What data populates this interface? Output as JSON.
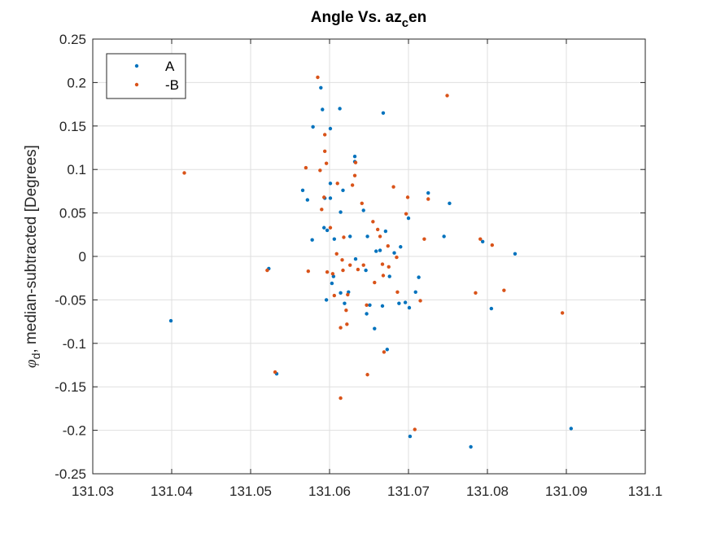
{
  "chart_data": {
    "type": "scatter",
    "title": {
      "main": "Angle Vs. az",
      "sub": "c",
      "tail": "en"
    },
    "ylabel": {
      "sym": "φ",
      "sub": "d",
      "rest": ", median-subtracted [Degrees]"
    },
    "xlabel": "",
    "xlim": [
      131.03,
      131.1
    ],
    "ylim": [
      -0.25,
      0.25
    ],
    "xticks": [
      131.03,
      131.04,
      131.05,
      131.06,
      131.07,
      131.08,
      131.09,
      131.1
    ],
    "xtick_labels": [
      "131.03",
      "131.04",
      "131.05",
      "131.06",
      "131.07",
      "131.08",
      "131.09",
      "131.1"
    ],
    "yticks": [
      -0.25,
      -0.2,
      -0.15,
      -0.1,
      -0.05,
      0,
      0.05,
      0.1,
      0.15,
      0.2,
      0.25
    ],
    "ytick_labels": [
      "-0.25",
      "-0.2",
      "-0.15",
      "-0.1",
      "-0.05",
      "0",
      "0.05",
      "0.1",
      "0.15",
      "0.2",
      "0.25"
    ],
    "grid": true,
    "legend_position": "top-left",
    "series": [
      {
        "name": "A",
        "color": "#0072BD",
        "points": [
          [
            131.0399,
            -0.074
          ],
          [
            131.0523,
            -0.014
          ],
          [
            131.0533,
            -0.135
          ],
          [
            131.0566,
            0.076
          ],
          [
            131.0572,
            0.065
          ],
          [
            131.0579,
            0.149
          ],
          [
            131.0578,
            0.019
          ],
          [
            131.0589,
            0.194
          ],
          [
            131.0591,
            0.169
          ],
          [
            131.0593,
            0.033
          ],
          [
            131.0594,
            0.067
          ],
          [
            131.0597,
            0.03
          ],
          [
            131.0596,
            -0.05
          ],
          [
            131.0601,
            0.147
          ],
          [
            131.0601,
            0.084
          ],
          [
            131.0601,
            0.067
          ],
          [
            131.0603,
            -0.031
          ],
          [
            131.0606,
            0.02
          ],
          [
            131.0605,
            -0.023
          ],
          [
            131.0613,
            0.17
          ],
          [
            131.0614,
            0.051
          ],
          [
            131.0614,
            -0.042
          ],
          [
            131.0617,
            0.076
          ],
          [
            131.0619,
            -0.054
          ],
          [
            131.0624,
            -0.041
          ],
          [
            131.0626,
            0.023
          ],
          [
            131.0632,
            0.115
          ],
          [
            131.0632,
            0.109
          ],
          [
            131.0633,
            -0.003
          ],
          [
            131.0643,
            0.053
          ],
          [
            131.0646,
            -0.016
          ],
          [
            131.0647,
            -0.066
          ],
          [
            131.0648,
            0.023
          ],
          [
            131.0651,
            -0.056
          ],
          [
            131.0657,
            -0.083
          ],
          [
            131.0659,
            0.006
          ],
          [
            131.0664,
            0.007
          ],
          [
            131.0667,
            -0.057
          ],
          [
            131.0668,
            0.165
          ],
          [
            131.0671,
            0.029
          ],
          [
            131.0673,
            -0.107
          ],
          [
            131.0676,
            -0.023
          ],
          [
            131.0682,
            0.004
          ],
          [
            131.0688,
            -0.054
          ],
          [
            131.069,
            0.011
          ],
          [
            131.0696,
            -0.053
          ],
          [
            131.07,
            0.044
          ],
          [
            131.0701,
            -0.059
          ],
          [
            131.0702,
            -0.207
          ],
          [
            131.0709,
            -0.041
          ],
          [
            131.0713,
            -0.024
          ],
          [
            131.0725,
            0.073
          ],
          [
            131.0745,
            0.023
          ],
          [
            131.0752,
            0.061
          ],
          [
            131.0779,
            -0.219
          ],
          [
            131.0794,
            0.017
          ],
          [
            131.0805,
            -0.06
          ],
          [
            131.0835,
            0.003
          ],
          [
            131.0906,
            -0.198
          ]
        ]
      },
      {
        "name": "-B",
        "color": "#D95319",
        "points": [
          [
            131.0416,
            0.096
          ],
          [
            131.0521,
            -0.016
          ],
          [
            131.0531,
            -0.133
          ],
          [
            131.057,
            0.102
          ],
          [
            131.0573,
            -0.017
          ],
          [
            131.0585,
            0.206
          ],
          [
            131.0588,
            0.099
          ],
          [
            131.059,
            0.054
          ],
          [
            131.0593,
            0.068
          ],
          [
            131.0594,
            0.14
          ],
          [
            131.0594,
            0.121
          ],
          [
            131.0596,
            0.107
          ],
          [
            131.0597,
            -0.018
          ],
          [
            131.0601,
            0.033
          ],
          [
            131.0604,
            -0.02
          ],
          [
            131.0606,
            -0.045
          ],
          [
            131.0609,
            0.003
          ],
          [
            131.061,
            0.084
          ],
          [
            131.0614,
            -0.082
          ],
          [
            131.0614,
            -0.163
          ],
          [
            131.0616,
            -0.004
          ],
          [
            131.0617,
            -0.016
          ],
          [
            131.0618,
            0.022
          ],
          [
            131.0621,
            -0.062
          ],
          [
            131.0622,
            -0.078
          ],
          [
            131.0623,
            -0.044
          ],
          [
            131.0626,
            -0.01
          ],
          [
            131.0629,
            0.082
          ],
          [
            131.0632,
            0.093
          ],
          [
            131.0633,
            0.108
          ],
          [
            131.0636,
            -0.015
          ],
          [
            131.0641,
            0.061
          ],
          [
            131.0643,
            -0.01
          ],
          [
            131.0647,
            -0.056
          ],
          [
            131.0648,
            -0.136
          ],
          [
            131.0655,
            0.04
          ],
          [
            131.0657,
            -0.03
          ],
          [
            131.0661,
            0.031
          ],
          [
            131.0664,
            0.023
          ],
          [
            131.0667,
            -0.009
          ],
          [
            131.0668,
            -0.022
          ],
          [
            131.0669,
            -0.11
          ],
          [
            131.0674,
            0.012
          ],
          [
            131.0675,
            -0.012
          ],
          [
            131.0681,
            0.08
          ],
          [
            131.0685,
            -0.001
          ],
          [
            131.0686,
            -0.041
          ],
          [
            131.0697,
            0.049
          ],
          [
            131.0699,
            0.068
          ],
          [
            131.0708,
            -0.199
          ],
          [
            131.0715,
            -0.051
          ],
          [
            131.072,
            0.02
          ],
          [
            131.0725,
            0.066
          ],
          [
            131.0749,
            0.185
          ],
          [
            131.0785,
            -0.042
          ],
          [
            131.0791,
            0.02
          ],
          [
            131.0806,
            0.013
          ],
          [
            131.0821,
            -0.039
          ],
          [
            131.0895,
            -0.065
          ]
        ]
      }
    ]
  }
}
